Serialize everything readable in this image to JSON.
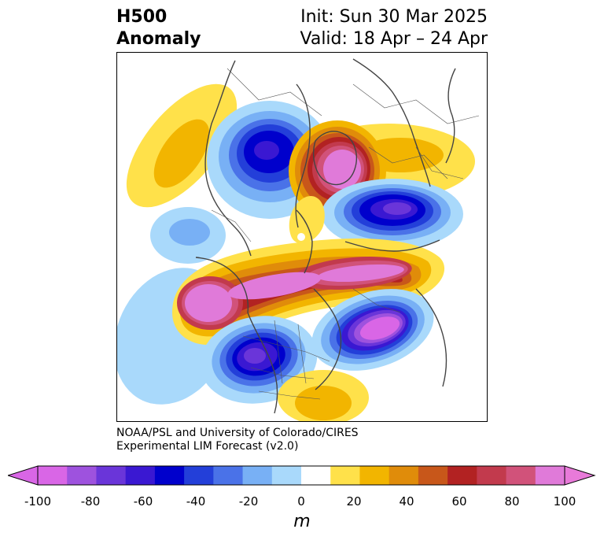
{
  "title": {
    "left_line1": "H500",
    "left_line2": "Anomaly",
    "right_line1": "Init: Sun 30 Mar 2025",
    "right_line2": "Valid: 18 Apr – 24 Apr"
  },
  "credit": {
    "line1": "NOAA/PSL and University of Colorado/CIRES",
    "line2": "Experimental LIM Forecast (v2.0)"
  },
  "colorbar": {
    "unit": "m",
    "ticks": [
      "-100",
      "-80",
      "-60",
      "-40",
      "-20",
      "0",
      "20",
      "40",
      "60",
      "80",
      "100"
    ],
    "colors": [
      "#d966e6",
      "#9e52de",
      "#6a35d9",
      "#3a18d2",
      "#0000cc",
      "#233fd9",
      "#4a72e8",
      "#78b0f5",
      "#a9d9fb",
      "#ffffff",
      "#ffe14a",
      "#f2b500",
      "#e08c0a",
      "#c8571a",
      "#b22222",
      "#c23a4d",
      "#d1527a",
      "#e07ad9"
    ],
    "extend_low_color": "#d966e6",
    "extend_high_color": "#e87ad9"
  },
  "map": {
    "projection": "polar stereographic, North Pole",
    "features": [
      "coastlines",
      "country borders",
      "state/province borders"
    ],
    "pole_marker": "white dot"
  }
}
